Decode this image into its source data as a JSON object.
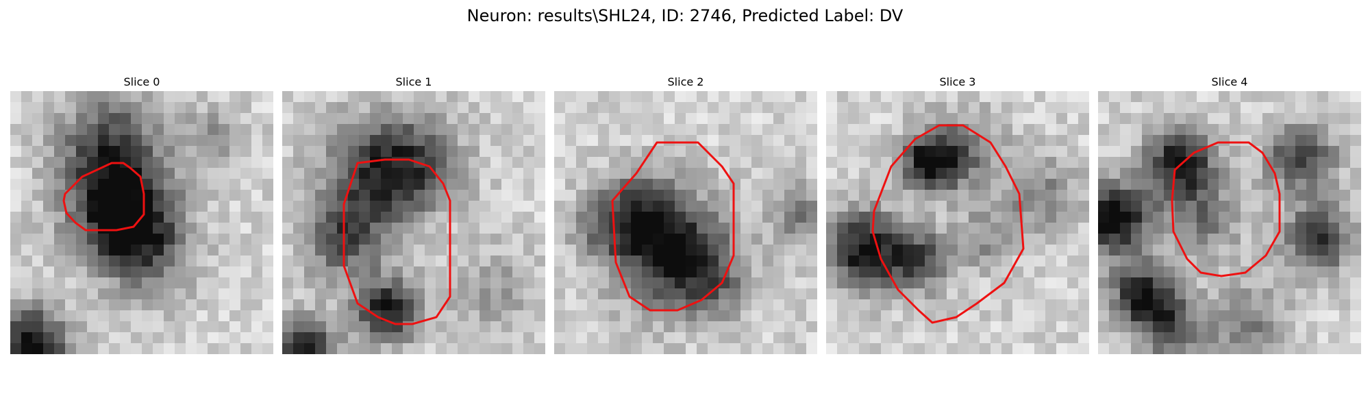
{
  "figure": {
    "title": "Neuron: results\\SHL24, ID: 2746, Predicted Label: DV"
  },
  "panels": [
    {
      "title": "Slice 0"
    },
    {
      "title": "Slice 1"
    },
    {
      "title": "Slice 2"
    },
    {
      "title": "Slice 3"
    },
    {
      "title": "Slice 4"
    }
  ],
  "colors": {
    "contour": "#ee1111",
    "background": "#ffffff"
  }
}
